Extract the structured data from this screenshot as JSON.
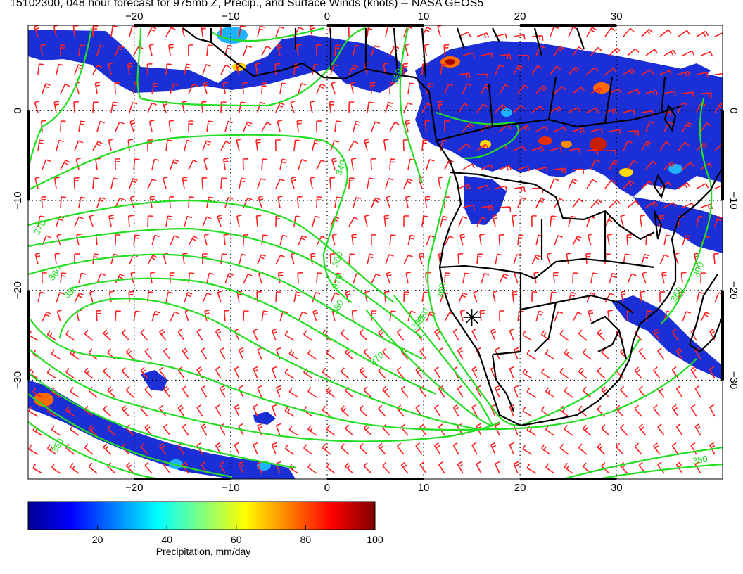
{
  "title": "15102300, 048 hour forecast for 975mb Z, Precip., and Surface Winds (knots) -- NASA GEOS5",
  "map": {
    "lon_range": [
      -31,
      41
    ],
    "lat_range": [
      -41,
      9.5
    ],
    "lon_ticks": [
      -20,
      -10,
      0,
      10,
      20,
      30
    ],
    "lat_ticks": [
      0,
      -10,
      -20,
      -30
    ],
    "lon_tick_labels": [
      "−20",
      "−10",
      "0",
      "10",
      "20",
      "30"
    ],
    "lat_tick_labels": [
      "0",
      "−10",
      "−20",
      "−30"
    ],
    "grid": "dotted every 10 degrees",
    "layers": [
      {
        "name": "975mb geopotential height contours",
        "color": "#22dd22"
      },
      {
        "name": "precipitation shading",
        "color_scale": "jet"
      },
      {
        "name": "surface wind barbs",
        "color": "#ff2020"
      },
      {
        "name": "coastlines and country borders",
        "color": "#000000"
      }
    ],
    "contour_labels": [
      "370",
      "360",
      "380",
      "350",
      "340",
      "390",
      "370",
      "380",
      "360",
      "370",
      "360",
      "350",
      "390",
      "360",
      "380",
      "350"
    ],
    "marker": {
      "type": "asterisk",
      "lon": 15,
      "lat": -23
    }
  },
  "colorbar": {
    "label": "Precipitation, mm/day",
    "tick_labels": [
      "20",
      "40",
      "60",
      "80",
      "100"
    ],
    "range": [
      0,
      100
    ],
    "colors": [
      "#00008f",
      "#0000ff",
      "#0080ff",
      "#00ffff",
      "#80ff80",
      "#ffff00",
      "#ff8000",
      "#ff0000",
      "#800000"
    ]
  }
}
